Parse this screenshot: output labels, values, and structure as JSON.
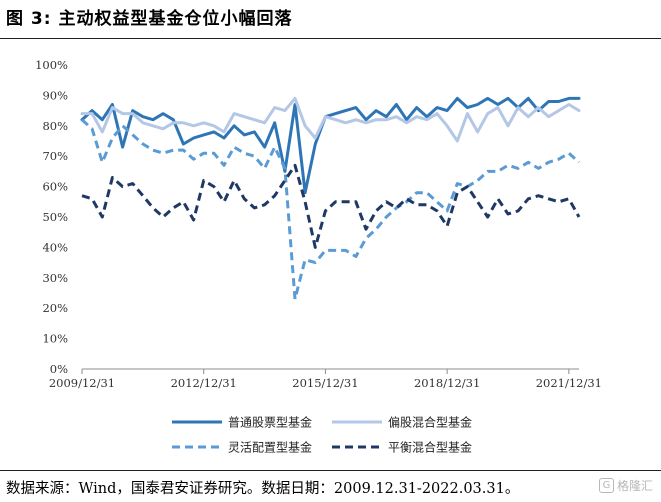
{
  "figure": {
    "title": "图 3:  主动权益型基金仓位小幅回落",
    "source_note": "数据来源：Wind，国泰君安证券研究。数据日期：2009.12.31-2022.03.31。",
    "watermark": "格隆汇",
    "watermark_icon": "G"
  },
  "chart_data": {
    "type": "line",
    "title": "",
    "xlabel": "",
    "ylabel": "",
    "ylim": [
      0,
      100
    ],
    "y_ticks": [
      0,
      10,
      20,
      30,
      40,
      50,
      60,
      70,
      80,
      90,
      100
    ],
    "y_tick_labels": [
      "0%",
      "10%",
      "20%",
      "30%",
      "40%",
      "50%",
      "60%",
      "70%",
      "80%",
      "90%",
      "100%"
    ],
    "x_tick_labels": [
      "2009/12/31",
      "2012/12/31",
      "2015/12/31",
      "2018/12/31",
      "2021/12/31"
    ],
    "x_tick_index": [
      0,
      12,
      24,
      36,
      48
    ],
    "x": [
      "2009/12/31",
      "2010/03/31",
      "2010/06/30",
      "2010/09/30",
      "2010/12/31",
      "2011/03/31",
      "2011/06/30",
      "2011/09/30",
      "2011/12/31",
      "2012/03/31",
      "2012/06/30",
      "2012/09/30",
      "2012/12/31",
      "2013/03/31",
      "2013/06/30",
      "2013/09/30",
      "2013/12/31",
      "2014/03/31",
      "2014/06/30",
      "2014/09/30",
      "2014/12/31",
      "2015/03/31",
      "2015/06/30",
      "2015/09/30",
      "2015/12/31",
      "2016/03/31",
      "2016/06/30",
      "2016/09/30",
      "2016/12/31",
      "2017/03/31",
      "2017/06/30",
      "2017/09/30",
      "2017/12/31",
      "2018/03/31",
      "2018/06/30",
      "2018/09/30",
      "2018/12/31",
      "2019/03/31",
      "2019/06/30",
      "2019/09/30",
      "2019/12/31",
      "2020/03/31",
      "2020/06/30",
      "2020/09/30",
      "2020/12/31",
      "2021/03/31",
      "2021/06/30",
      "2021/09/30",
      "2021/12/31",
      "2022/03/31"
    ],
    "legend_position": "bottom",
    "grid": false,
    "series": [
      {
        "name": "普通股票型基金",
        "color": "#2e75b6",
        "dash": "solid",
        "values": [
          82,
          85,
          82,
          87,
          73,
          85,
          83,
          82,
          84,
          82,
          74,
          76,
          77,
          78,
          76,
          80,
          77,
          78,
          73,
          81,
          65,
          87,
          58,
          74,
          83,
          84,
          85,
          86,
          82,
          85,
          83,
          87,
          82,
          86,
          83,
          86,
          85,
          89,
          86,
          87,
          89,
          87,
          89,
          86,
          89,
          85,
          88,
          88,
          89,
          89
        ]
      },
      {
        "name": "偏股混合型基金",
        "color": "#b4c7e7",
        "dash": "solid",
        "values": [
          84,
          84,
          78,
          86,
          84,
          84,
          81,
          80,
          79,
          81,
          81,
          80,
          81,
          80,
          78,
          84,
          83,
          82,
          81,
          86,
          85,
          89,
          80,
          76,
          83,
          82,
          81,
          82,
          81,
          82,
          82,
          83,
          81,
          83,
          82,
          84,
          80,
          75,
          84,
          78,
          84,
          86,
          80,
          86,
          83,
          86,
          83,
          85,
          87,
          85
        ]
      },
      {
        "name": "灵活配置型基金",
        "color": "#5b9bd5",
        "dash": "dashed",
        "values": [
          82,
          79,
          68,
          76,
          80,
          77,
          74,
          72,
          71,
          72,
          72,
          69,
          71,
          71,
          67,
          73,
          71,
          70,
          66,
          73,
          66,
          23,
          36,
          35,
          39,
          39,
          39,
          37,
          43,
          46,
          50,
          53,
          55,
          58,
          58,
          55,
          52,
          61,
          60,
          62,
          65,
          65,
          67,
          66,
          68,
          66,
          68,
          69,
          71,
          68
        ]
      },
      {
        "name": "平衡混合型基金",
        "color": "#1f3864",
        "dash": "dashed",
        "values": [
          57,
          56,
          50,
          63,
          60,
          61,
          57,
          53,
          50,
          53,
          55,
          49,
          62,
          60,
          55,
          62,
          56,
          53,
          54,
          57,
          62,
          67,
          55,
          40,
          52,
          55,
          55,
          55,
          46,
          52,
          55,
          53,
          56,
          54,
          54,
          52,
          47,
          58,
          60,
          55,
          50,
          56,
          51,
          52,
          56,
          57,
          56,
          55,
          56,
          50
        ]
      }
    ]
  }
}
